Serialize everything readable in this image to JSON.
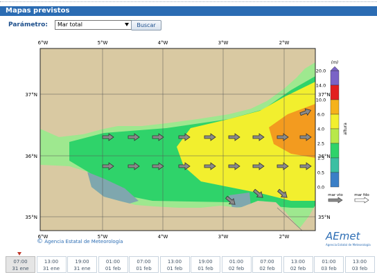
{
  "header": {
    "title": "Mapas previstos"
  },
  "form": {
    "label": "Parámetro:",
    "select": "Mar total",
    "button": "Buscar"
  },
  "map": {
    "lon_labels": [
      "6°W",
      "5°W",
      "4°W",
      "3°W",
      "2°W"
    ],
    "lat_labels": [
      "37°N",
      "36°N",
      "35°N"
    ],
    "copyright": "Agencia Estatal de Meteorología"
  },
  "colorbar": {
    "unit": "(m)",
    "label": "altura",
    "levels": [
      "20.0",
      "14.0",
      "10.0",
      "6.0",
      "4.0",
      "2.5",
      "1.3",
      "0.5",
      "0.0"
    ],
    "legend": [
      "mar vto",
      "mar fdo"
    ]
  },
  "logo": {
    "name": "AEmet",
    "subtitle": "Agencia Estatal de Meteorología"
  },
  "timeline": [
    {
      "time": "07:00",
      "date": "31 ene"
    },
    {
      "time": "13:00",
      "date": "31 ene"
    },
    {
      "time": "19:00",
      "date": "31 ene"
    },
    {
      "time": "01:00",
      "date": "01 feb"
    },
    {
      "time": "07:00",
      "date": "01 feb"
    },
    {
      "time": "13:00",
      "date": "01 feb"
    },
    {
      "time": "19:00",
      "date": "01 feb"
    },
    {
      "time": "01:00",
      "date": "02 feb"
    },
    {
      "time": "07:00",
      "date": "02 feb"
    },
    {
      "time": "13:00",
      "date": "02 feb"
    },
    {
      "time": "01:00",
      "date": "03 feb"
    },
    {
      "time": "13:00",
      "date": "03 feb"
    }
  ]
}
